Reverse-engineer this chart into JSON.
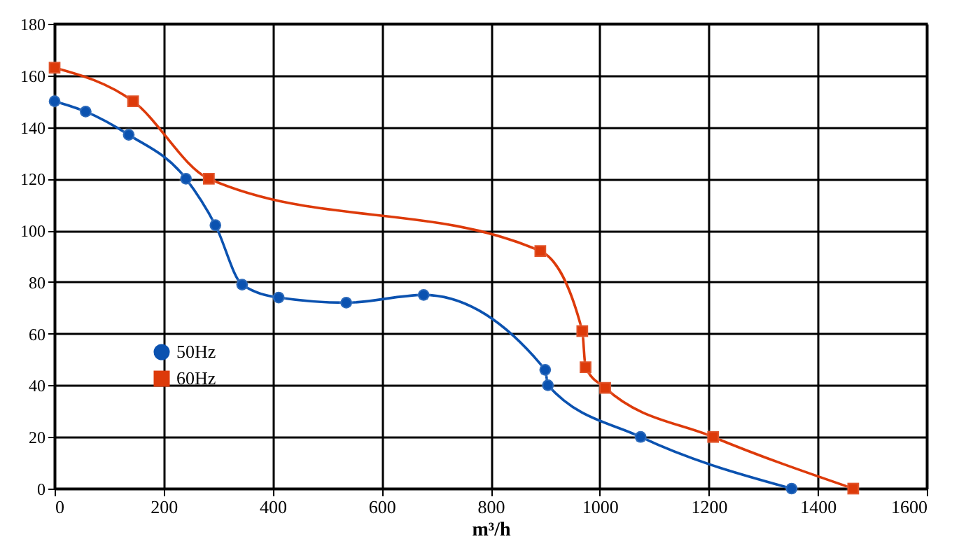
{
  "chart_data": {
    "type": "line",
    "xlabel": "m³/h",
    "xlim": [
      0,
      1600
    ],
    "xticks": [
      0,
      200,
      400,
      600,
      800,
      1000,
      1200,
      1400,
      1600
    ],
    "ylim": [
      0,
      180
    ],
    "yticks": [
      0,
      20,
      40,
      60,
      80,
      100,
      120,
      140,
      160,
      180
    ],
    "grid": true,
    "legend": "bottom left",
    "marker": "circle",
    "line_style": "solid",
    "series": [
      {
        "name": "50Hz",
        "color": "#0b52b0",
        "marker": "circle",
        "x": [
          0,
          57,
          136,
          241,
          295,
          344,
          411,
          535,
          677,
          900,
          905,
          1075,
          1352
        ],
        "values": [
          150,
          146,
          137,
          120,
          102,
          79,
          74,
          72,
          75,
          46,
          40,
          20,
          0
        ]
      },
      {
        "name": "60Hz",
        "color": "#dd3a0a",
        "marker": "square",
        "x": [
          0,
          144,
          283,
          891,
          968,
          974,
          1010,
          1208,
          1465
        ],
        "values": [
          163,
          150,
          120,
          92,
          61,
          47,
          39,
          20,
          0
        ]
      }
    ]
  }
}
